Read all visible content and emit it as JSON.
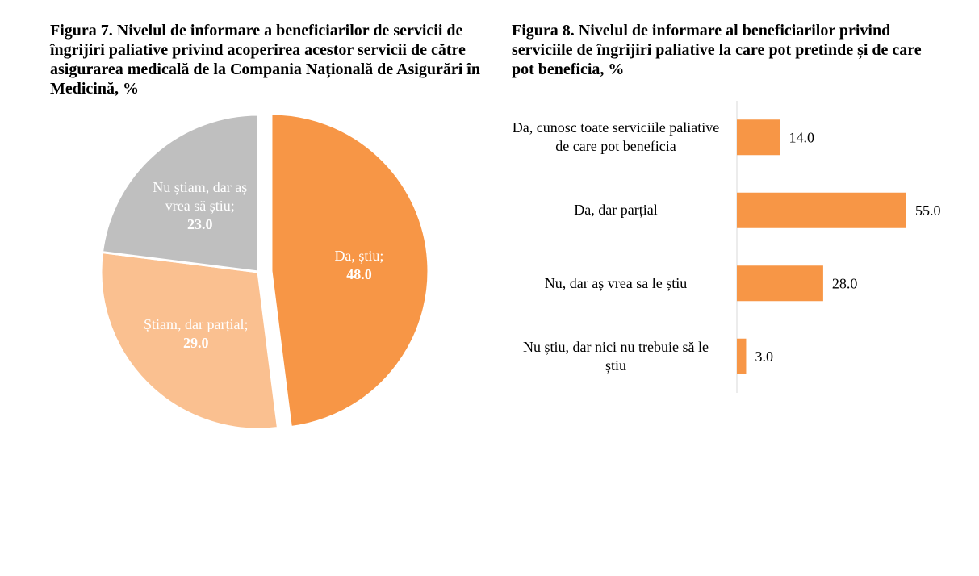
{
  "chart_data": [
    {
      "type": "pie",
      "title": "Figura 7. Nivelul de informare a beneficiarilor de servicii de îngrijiri paliative privind acoperirea acestor servicii de către asigurarea medicală de la Compania Națională de Asigurări în Medicină, %",
      "categories": [
        "Da, știu;",
        "Știam, dar parțial;",
        "Nu știam, dar aș vrea să știu;"
      ],
      "values": [
        48,
        29,
        23
      ],
      "value_labels": [
        "48.0",
        "29.0",
        "23.0"
      ],
      "colors": [
        "#f79646",
        "#fac090",
        "#bfbfbf"
      ]
    },
    {
      "type": "hbar",
      "title": "Figura 8. Nivelul de informare al beneficiarilor privind serviciile de îngrijiri paliative la care pot pretinde și de care pot beneficia, %",
      "categories": [
        "Da, cunosc toate serviciile paliative de care pot beneficia",
        "Da, dar parțial",
        "Nu, dar aș vrea sa le știu",
        "Nu știu, dar nici nu trebuie să le știu"
      ],
      "values": [
        14,
        55,
        28,
        3
      ],
      "value_labels": [
        "14.0",
        "55.0",
        "28.0",
        "3.0"
      ],
      "color": "#f79646"
    }
  ]
}
